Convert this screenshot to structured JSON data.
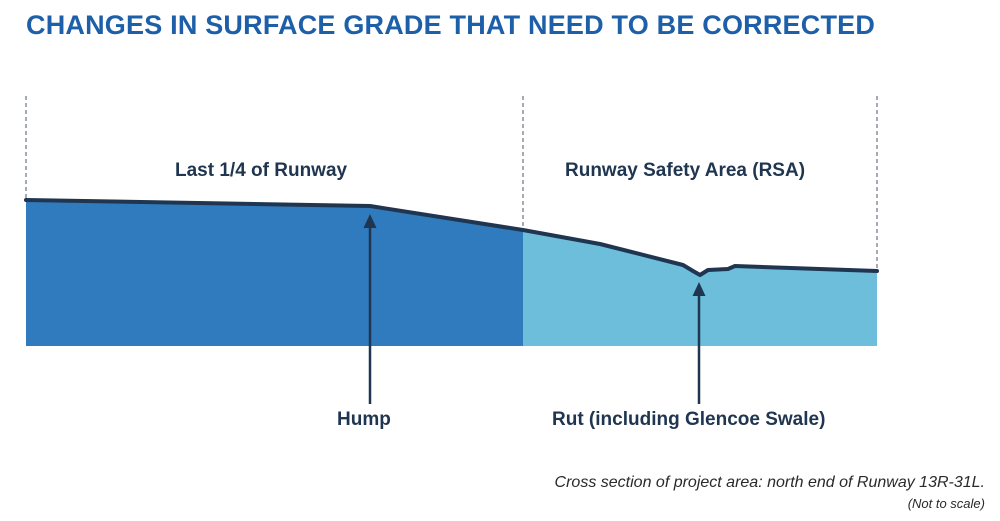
{
  "title": "CHANGES IN SURFACE GRADE THAT NEED TO BE CORRECTED",
  "zones": {
    "runway_label": "Last 1/4 of Runway",
    "rsa_label": "Runway Safety Area (RSA)"
  },
  "features": {
    "hump_label": "Hump",
    "rut_label": "Rut (including Glencoe Swale)"
  },
  "caption": {
    "line1": "Cross section of project area: north end of Runway 13R-31L.",
    "line2": "(Not to scale)"
  },
  "colors": {
    "title": "#1d5fa8",
    "runway_fill": "#2f7bbd",
    "rsa_fill": "#6dbedb",
    "surface_line": "#1f3550",
    "text": "#1f3550"
  }
}
